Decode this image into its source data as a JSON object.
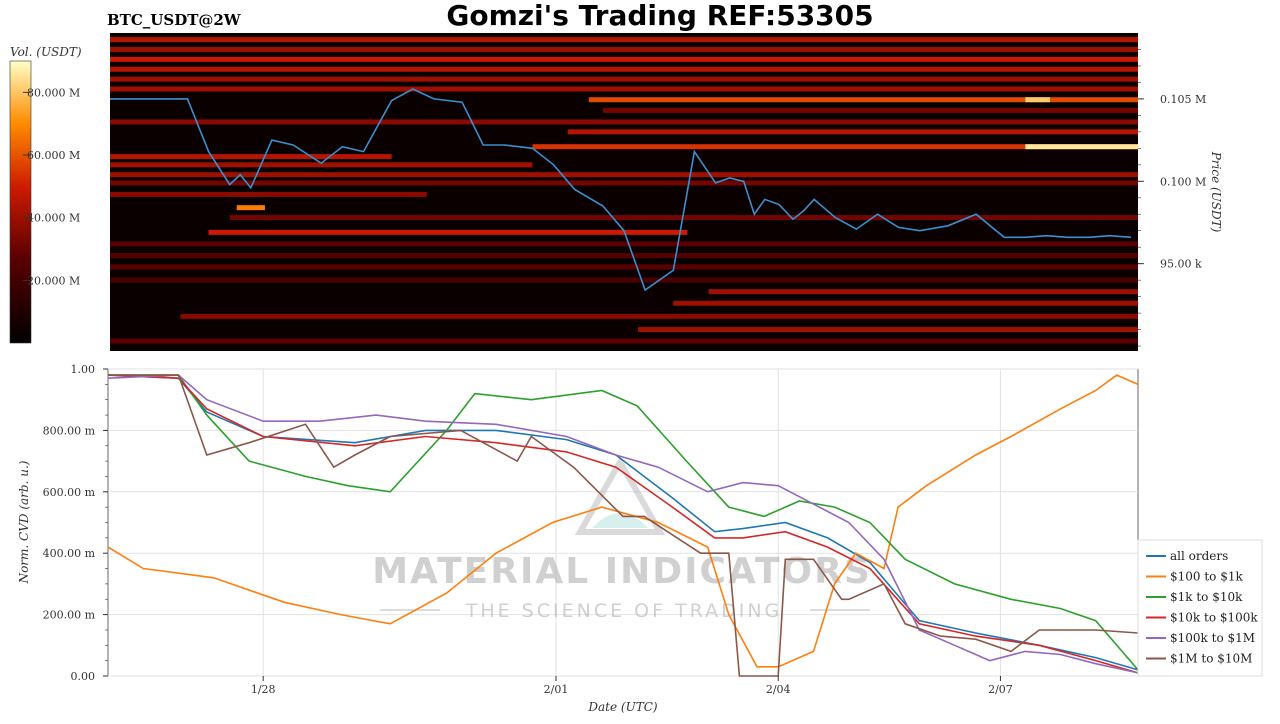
{
  "header": {
    "symbol_label": "BTC_USDT@2W",
    "title": "Gomzi's Trading REF:53305"
  },
  "watermark": {
    "line1": "MATERIAL INDICATORS",
    "line2": "THE SCIENCE OF TRADING"
  },
  "colors": {
    "heatmap_bg": "#0a0000",
    "price_line": "#3a8fd0",
    "all_orders": "#1f77b4",
    "r100_1k": "#ff7f0e",
    "r1k_10k": "#2ca02c",
    "r10k_100k": "#d62728",
    "r100k_1m": "#9467bd",
    "r1m_10m": "#8c564b"
  },
  "chart_data": [
    {
      "type": "heatmap",
      "ylabel": "Price (USDT)",
      "colorbar_label": "Vol. (USDT)",
      "colorbar_ticks": [
        "20.000 M",
        "40.000 M",
        "60.000 M",
        "80.000 M"
      ],
      "colorbar_tick_values": [
        20,
        40,
        60,
        80
      ],
      "colorbar_range": [
        0,
        90
      ],
      "y_ticks": [
        "95.00 k",
        "0.100 M",
        "0.105 M"
      ],
      "y_tick_values": [
        95000,
        100000,
        105000
      ],
      "y_range": [
        89700,
        109000
      ],
      "x_range_days": [
        0,
        14.6
      ],
      "price_series": {
        "x_days": [
          0,
          0.6,
          1.1,
          1.4,
          1.7,
          1.85,
          2.0,
          2.3,
          2.6,
          3.0,
          3.3,
          3.6,
          4.0,
          4.3,
          4.6,
          5.0,
          5.3,
          5.6,
          6.0,
          6.3,
          6.6,
          7.0,
          7.3,
          7.6,
          8.0,
          8.3,
          8.6,
          8.8,
          9.0,
          9.15,
          9.3,
          9.5,
          9.7,
          9.85,
          10.0,
          10.3,
          10.6,
          10.9,
          11.2,
          11.5,
          11.9,
          12.3,
          12.7,
          13.0,
          13.3,
          13.6,
          13.9,
          14.2,
          14.5
        ],
        "y": [
          105000,
          105000,
          105000,
          101800,
          99800,
          100400,
          99600,
          102500,
          102200,
          101100,
          102100,
          101800,
          104900,
          105600,
          105000,
          104800,
          102200,
          102200,
          102000,
          101000,
          99500,
          98500,
          97000,
          93400,
          94600,
          101800,
          99900,
          100200,
          100000,
          98000,
          98900,
          98600,
          97700,
          98200,
          98900,
          97800,
          97100,
          98000,
          97200,
          97000,
          97300,
          98000,
          96600,
          96600,
          96700,
          96600,
          96600,
          96700,
          96600
        ]
      },
      "heat_bands": [
        {
          "price": 108600,
          "start_day": 0,
          "end_day": 14.6,
          "intensity": 0.5
        },
        {
          "price": 108000,
          "start_day": 0,
          "end_day": 14.6,
          "intensity": 0.45
        },
        {
          "price": 107400,
          "start_day": 0,
          "end_day": 14.6,
          "intensity": 0.55
        },
        {
          "price": 106800,
          "start_day": 0,
          "end_day": 14.6,
          "intensity": 0.5
        },
        {
          "price": 106200,
          "start_day": 0,
          "end_day": 14.6,
          "intensity": 0.45
        },
        {
          "price": 105600,
          "start_day": 0,
          "end_day": 14.6,
          "intensity": 0.45
        },
        {
          "price": 104950,
          "start_day": 6.8,
          "end_day": 14.6,
          "intensity": 0.65
        },
        {
          "price": 104950,
          "start_day": 13.0,
          "end_day": 13.35,
          "intensity": 0.9
        },
        {
          "price": 104300,
          "start_day": 7.0,
          "end_day": 14.6,
          "intensity": 0.35
        },
        {
          "price": 103600,
          "start_day": 0,
          "end_day": 14.6,
          "intensity": 0.4
        },
        {
          "price": 103000,
          "start_day": 6.5,
          "end_day": 14.6,
          "intensity": 0.5
        },
        {
          "price": 102100,
          "start_day": 6.0,
          "end_day": 14.6,
          "intensity": 0.6
        },
        {
          "price": 102100,
          "start_day": 13.0,
          "end_day": 14.6,
          "intensity": 0.95
        },
        {
          "price": 101500,
          "start_day": 0,
          "end_day": 4.0,
          "intensity": 0.5
        },
        {
          "price": 101000,
          "start_day": 0,
          "end_day": 6.0,
          "intensity": 0.45
        },
        {
          "price": 100400,
          "start_day": 0,
          "end_day": 14.6,
          "intensity": 0.45
        },
        {
          "price": 99900,
          "start_day": 0,
          "end_day": 14.6,
          "intensity": 0.35
        },
        {
          "price": 99200,
          "start_day": 0,
          "end_day": 4.5,
          "intensity": 0.4
        },
        {
          "price": 98400,
          "start_day": 1.8,
          "end_day": 2.2,
          "intensity": 0.75
        },
        {
          "price": 97800,
          "start_day": 1.7,
          "end_day": 14.6,
          "intensity": 0.35
        },
        {
          "price": 96900,
          "start_day": 1.4,
          "end_day": 8.2,
          "intensity": 0.55
        },
        {
          "price": 96200,
          "start_day": 0,
          "end_day": 14.6,
          "intensity": 0.3
        },
        {
          "price": 95500,
          "start_day": 0,
          "end_day": 14.6,
          "intensity": 0.28
        },
        {
          "price": 94800,
          "start_day": 0,
          "end_day": 14.6,
          "intensity": 0.3
        },
        {
          "price": 94000,
          "start_day": 0,
          "end_day": 14.6,
          "intensity": 0.25
        },
        {
          "price": 93300,
          "start_day": 8.5,
          "end_day": 14.6,
          "intensity": 0.45
        },
        {
          "price": 92600,
          "start_day": 8.0,
          "end_day": 14.6,
          "intensity": 0.45
        },
        {
          "price": 91800,
          "start_day": 1.0,
          "end_day": 14.6,
          "intensity": 0.4
        },
        {
          "price": 91000,
          "start_day": 7.5,
          "end_day": 14.6,
          "intensity": 0.45
        },
        {
          "price": 90300,
          "start_day": 0,
          "end_day": 14.6,
          "intensity": 0.3
        }
      ]
    },
    {
      "type": "line",
      "xlabel": "Date (UTC)",
      "ylabel": "Norm. CVD (arb. u.)",
      "x_ticks": [
        "1/28",
        "2/01",
        "2/04",
        "2/07"
      ],
      "x_tick_days": [
        2.2,
        6.35,
        9.5,
        12.65
      ],
      "x_range_days": [
        0,
        14.6
      ],
      "y_ticks": [
        "0.00",
        "200.00 m",
        "400.00 m",
        "600.00 m",
        "800.00 m",
        "1.00"
      ],
      "y_tick_values": [
        0,
        0.2,
        0.4,
        0.6,
        0.8,
        1.0
      ],
      "ylim": [
        0,
        1.0
      ],
      "grid": true,
      "legend_position": "right",
      "series": [
        {
          "name": "all orders",
          "color_key": "all_orders",
          "x": [
            0,
            1.0,
            1.4,
            2.2,
            3.5,
            4.5,
            5.5,
            6.5,
            7.2,
            8.0,
            8.6,
            9.0,
            9.6,
            10.2,
            10.8,
            11.5,
            12.3,
            13.2,
            14.0,
            14.6
          ],
          "y": [
            0.98,
            0.97,
            0.86,
            0.78,
            0.76,
            0.8,
            0.8,
            0.77,
            0.72,
            0.58,
            0.47,
            0.48,
            0.5,
            0.45,
            0.37,
            0.18,
            0.14,
            0.1,
            0.06,
            0.02
          ]
        },
        {
          "name": "$100 to $1k",
          "color_key": "r100_1k",
          "x": [
            0,
            0.5,
            1.5,
            2.5,
            3.3,
            4.0,
            4.8,
            5.5,
            6.3,
            7.0,
            7.8,
            8.5,
            8.8,
            9.2,
            9.5,
            10.0,
            10.3,
            10.6,
            11.0,
            11.2,
            11.6,
            12.3,
            12.8,
            13.5,
            14.0,
            14.3,
            14.6
          ],
          "y": [
            0.42,
            0.35,
            0.32,
            0.24,
            0.2,
            0.17,
            0.27,
            0.4,
            0.5,
            0.55,
            0.5,
            0.42,
            0.2,
            0.03,
            0.03,
            0.08,
            0.3,
            0.4,
            0.35,
            0.55,
            0.62,
            0.72,
            0.78,
            0.87,
            0.93,
            0.98,
            0.95
          ]
        },
        {
          "name": "$1k to $10k",
          "color_key": "r1k_10k",
          "x": [
            0,
            1.0,
            1.4,
            2.0,
            2.8,
            3.4,
            4.0,
            4.8,
            5.2,
            6.0,
            7.0,
            7.5,
            8.2,
            8.8,
            9.3,
            9.8,
            10.3,
            10.8,
            11.3,
            12.0,
            12.8,
            13.5,
            14.0,
            14.6
          ],
          "y": [
            0.98,
            0.98,
            0.85,
            0.7,
            0.65,
            0.62,
            0.6,
            0.8,
            0.92,
            0.9,
            0.93,
            0.88,
            0.7,
            0.55,
            0.52,
            0.57,
            0.55,
            0.5,
            0.38,
            0.3,
            0.25,
            0.22,
            0.18,
            0.02
          ]
        },
        {
          "name": "$10k to $100k",
          "color_key": "r10k_100k",
          "x": [
            0,
            1.0,
            1.4,
            2.2,
            3.5,
            4.5,
            5.5,
            6.5,
            7.2,
            8.0,
            8.6,
            9.0,
            9.6,
            10.2,
            10.8,
            11.5,
            12.3,
            13.2,
            14.0,
            14.6
          ],
          "y": [
            0.98,
            0.97,
            0.87,
            0.78,
            0.75,
            0.78,
            0.76,
            0.73,
            0.68,
            0.55,
            0.45,
            0.45,
            0.47,
            0.42,
            0.35,
            0.17,
            0.13,
            0.1,
            0.05,
            0.01
          ]
        },
        {
          "name": "$100k to $1M",
          "color_key": "r100k_1m",
          "x": [
            0,
            1.0,
            1.4,
            2.2,
            3.0,
            3.8,
            4.5,
            5.5,
            6.5,
            7.2,
            7.8,
            8.5,
            9.0,
            9.5,
            10.0,
            10.5,
            11.0,
            11.5,
            12.0,
            12.5,
            13.0,
            13.5,
            14.0,
            14.6
          ],
          "y": [
            0.97,
            0.98,
            0.9,
            0.83,
            0.83,
            0.85,
            0.83,
            0.82,
            0.78,
            0.72,
            0.68,
            0.6,
            0.63,
            0.62,
            0.56,
            0.5,
            0.38,
            0.15,
            0.1,
            0.05,
            0.08,
            0.07,
            0.04,
            0.01
          ]
        },
        {
          "name": "$1M to $10M",
          "color_key": "r1m_10m",
          "x": [
            0,
            1.0,
            1.4,
            2.0,
            2.8,
            3.2,
            3.5,
            4.0,
            5.0,
            5.8,
            6.0,
            6.6,
            7.3,
            7.6,
            8.4,
            8.8,
            8.95,
            9.0,
            9.5,
            9.6,
            10.0,
            10.4,
            10.5,
            11.0,
            11.3,
            11.8,
            12.3,
            12.8,
            13.2,
            14.0,
            14.6
          ],
          "y": [
            0.98,
            0.98,
            0.72,
            0.76,
            0.82,
            0.68,
            0.72,
            0.78,
            0.8,
            0.7,
            0.78,
            0.68,
            0.52,
            0.52,
            0.4,
            0.4,
            0.0,
            0.0,
            0.0,
            0.38,
            0.38,
            0.25,
            0.25,
            0.3,
            0.17,
            0.13,
            0.12,
            0.08,
            0.15,
            0.15,
            0.14
          ]
        }
      ]
    }
  ]
}
